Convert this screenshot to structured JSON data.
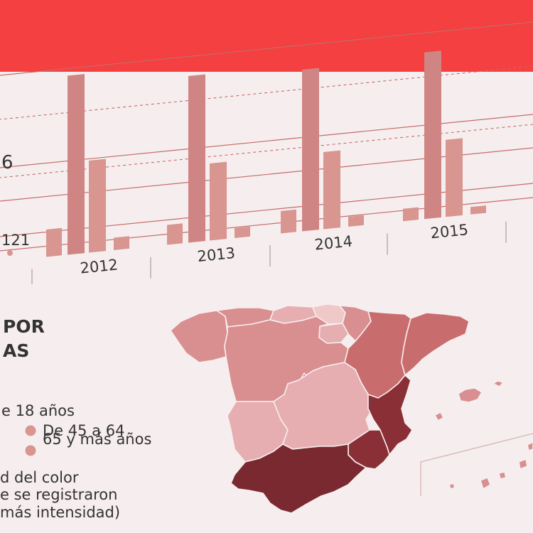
{
  "header": {
    "bar_color": "#f44040"
  },
  "chart_data": {
    "type": "bar",
    "title": "",
    "categories": [
      "2012",
      "2013",
      "2014",
      "2015"
    ],
    "series": [
      {
        "values": [
          11,
          8,
          9,
          5
        ]
      },
      {
        "values": [
          72,
          67,
          65,
          67
        ]
      },
      {
        "values": [
          37,
          31,
          31,
          31
        ]
      },
      {
        "values": [
          5,
          4,
          4,
          3
        ]
      }
    ],
    "ylim": [
      0,
      80
    ],
    "grid": true,
    "visible_labels": [
      "6",
      "121"
    ],
    "colors": {
      "bar": "#d9958f",
      "tall_bar": "#cf8583",
      "line": "#c66a6a"
    }
  },
  "map": {
    "title_lines": [
      "POR",
      "AS"
    ],
    "legend_items": [
      {
        "label": "e 18 años",
        "swatch": false
      },
      {
        "label": "De 45 a 64",
        "swatch": true
      },
      {
        "label": "65 y más años",
        "swatch": true
      }
    ],
    "note_lines": [
      "d del color",
      "e se registraron",
      "más intensidad)"
    ],
    "colors": {
      "lightest": "#efc8c8",
      "light": "#e6aeb1",
      "mid": "#d98e90",
      "mid_dark": "#c96c6e",
      "dark": "#8a2f36",
      "darkest": "#7a2930",
      "swatch": "#d9958f"
    }
  }
}
